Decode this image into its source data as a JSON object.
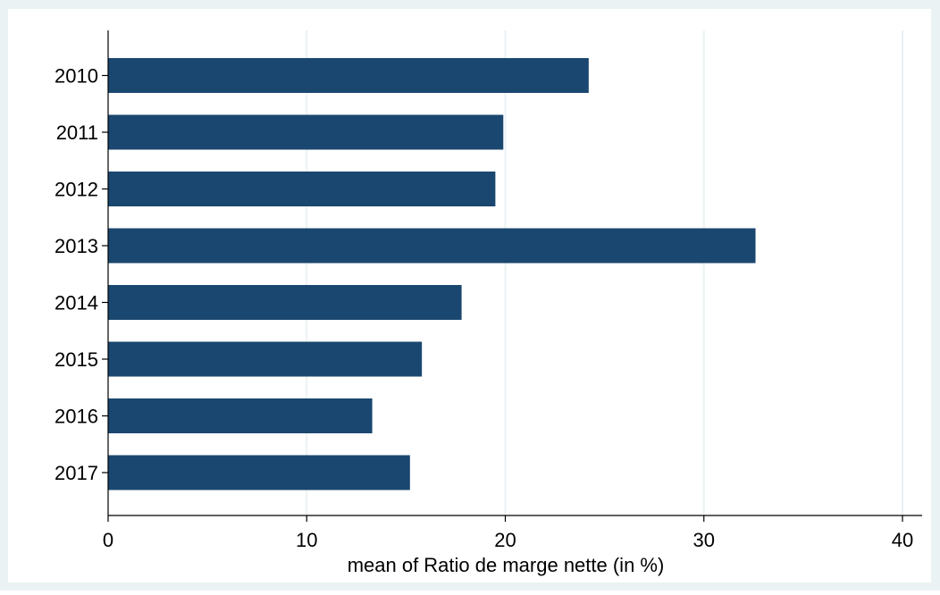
{
  "chart_data": {
    "type": "bar",
    "orientation": "horizontal",
    "categories": [
      "2010",
      "2011",
      "2012",
      "2013",
      "2014",
      "2015",
      "2016",
      "2017"
    ],
    "values": [
      24.2,
      19.9,
      19.5,
      32.6,
      17.8,
      15.8,
      13.3,
      15.2
    ],
    "title": "",
    "xlabel": "mean of Ratio de marge nette (in %)",
    "ylabel": "",
    "xlim": [
      0,
      40
    ],
    "xticks": [
      "0",
      "10",
      "20",
      "30",
      "40"
    ],
    "grid": true,
    "legend": "none",
    "colors": {
      "bar": "#1a476f",
      "outer_background": "#eaf2f3",
      "plot_background": "#ffffff",
      "grid": "#eaf2f3",
      "axis": "#000000"
    }
  }
}
